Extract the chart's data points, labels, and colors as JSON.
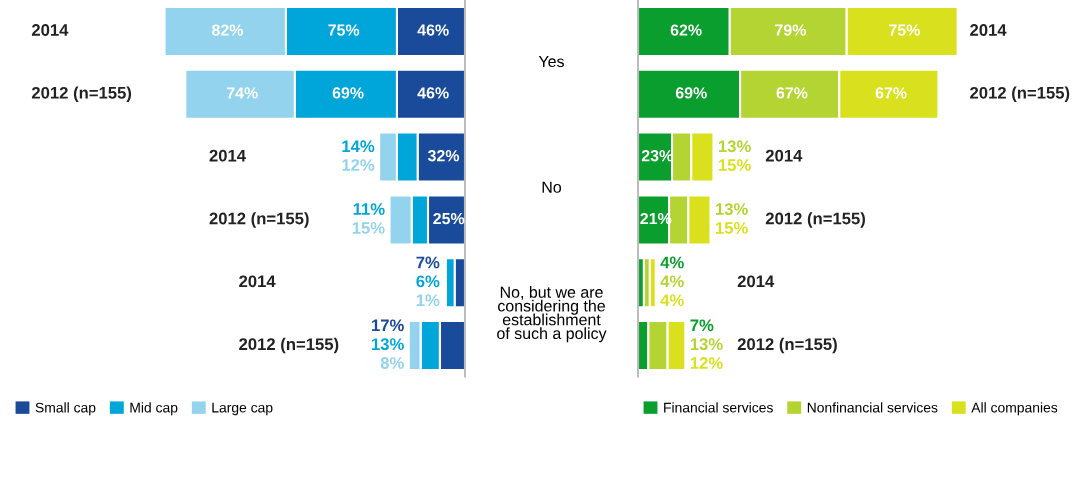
{
  "chart_data": [
    {
      "type": "bar",
      "orientation": "horizontal",
      "stacked": true,
      "tick_labels": "y",
      "legend": "bottom",
      "categories": [
        "2014",
        "2012 (n=155)",
        "2014",
        "2012 (n=155)",
        "2014",
        "2012 (n=155)"
      ],
      "annotations": [
        "Yes",
        "No",
        "No, but we are\nconsidering the\nestablishment\nof such a policy"
      ],
      "series": [
        {
          "name": "Small cap",
          "color": "#1a4a9a",
          "values": [
            46,
            46,
            32,
            25,
            7,
            17
          ],
          "value_labels": [
            "46%",
            "46%",
            "32%",
            "25%",
            "7%",
            "17%"
          ]
        },
        {
          "name": "Mid cap",
          "color": "#00a6d9",
          "values": [
            75,
            69,
            14,
            11,
            6,
            13
          ],
          "value_labels": [
            "75%",
            "69%",
            "14%",
            "11%",
            "6%",
            "13%"
          ]
        },
        {
          "name": "Large cap",
          "color": "#93d3ed",
          "values": [
            82,
            74,
            12,
            15,
            1,
            8
          ],
          "value_labels": [
            "82%",
            "74%",
            "12%",
            "15%",
            "1%",
            "8%"
          ]
        }
      ]
    },
    {
      "type": "bar",
      "orientation": "horizontal",
      "stacked": true,
      "tick_labels": "y",
      "legend": "bottom",
      "categories": [
        "2014",
        "2012 (n=155)",
        "2014",
        "2012 (n=155)",
        "2014",
        "2012 (n=155)"
      ],
      "series": [
        {
          "name": "Financial services",
          "color": "#0a9e2e",
          "values": [
            62,
            69,
            23,
            21,
            4,
            7
          ],
          "value_labels": [
            "62%",
            "69%",
            "23%",
            "21%",
            "4%",
            "7%"
          ]
        },
        {
          "name": "Nonfinancial services",
          "color": "#b3d433",
          "values": [
            79,
            67,
            13,
            13,
            4,
            13
          ],
          "value_labels": [
            "79%",
            "67%",
            "13%",
            "13%",
            "4%",
            "13%"
          ]
        },
        {
          "name": "All companies",
          "color": "#d9e01e",
          "values": [
            75,
            67,
            15,
            15,
            4,
            12
          ],
          "value_labels": [
            "75%",
            "67%",
            "15%",
            "15%",
            "4%",
            "12%"
          ]
        }
      ]
    }
  ]
}
